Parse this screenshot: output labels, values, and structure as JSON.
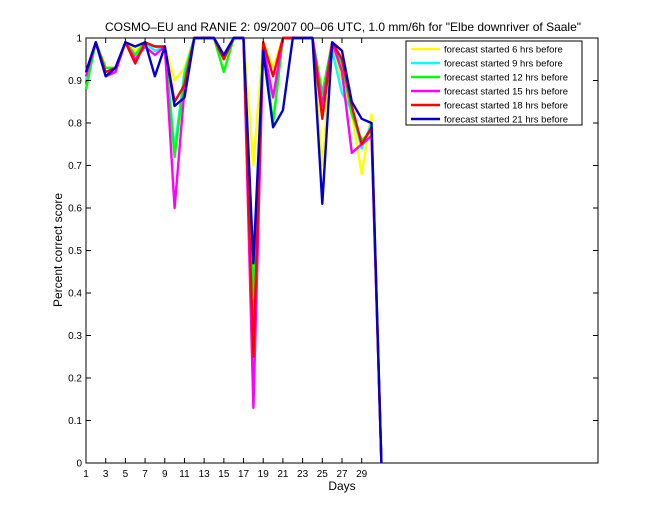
{
  "chart_data": {
    "type": "line",
    "title": "COSMO–EU and RANIE 2: 09/2007 00–06 UTC, 1.0 mm/6h for \"Elbe downriver of Saale\"",
    "xlabel": "Days",
    "ylabel": "Percent correct score",
    "xlim": [
      1,
      53
    ],
    "ylim": [
      0,
      1
    ],
    "xticks": [
      1,
      3,
      5,
      7,
      9,
      11,
      13,
      15,
      17,
      19,
      21,
      23,
      25,
      27,
      29
    ],
    "yticks": [
      0,
      0.1,
      0.2,
      0.3,
      0.4,
      0.5,
      0.6,
      0.7,
      0.8,
      0.9,
      1
    ],
    "ytick_labels": [
      "0",
      "0.1",
      "0.2",
      "0.3",
      "0.4",
      "0.5",
      "0.6",
      "0.7",
      "0.8",
      "0.9",
      "1"
    ],
    "legend_position": "top-right",
    "grid": false,
    "x": [
      1,
      2,
      3,
      4,
      5,
      6,
      7,
      8,
      9,
      10,
      11,
      12,
      13,
      14,
      15,
      16,
      17,
      18,
      19,
      20,
      21,
      22,
      23,
      24,
      25,
      26,
      27,
      28,
      29,
      30,
      31
    ],
    "series": [
      {
        "name": "forecast started 6 hrs before",
        "color": "#ffff00",
        "values": [
          0.92,
          0.99,
          0.92,
          0.93,
          0.99,
          0.97,
          0.99,
          0.97,
          0.98,
          0.9,
          0.93,
          1.0,
          1.0,
          1.0,
          0.95,
          1.0,
          1.0,
          0.7,
          0.99,
          0.93,
          1.0,
          1.0,
          1.0,
          1.0,
          0.7,
          0.99,
          0.9,
          0.82,
          0.68,
          0.82,
          0.0
        ]
      },
      {
        "name": "forecast started 9 hrs before",
        "color": "#00ffff",
        "values": [
          0.9,
          0.99,
          0.92,
          0.93,
          0.99,
          0.96,
          0.99,
          0.97,
          0.98,
          0.74,
          0.92,
          1.0,
          1.0,
          1.0,
          0.95,
          1.0,
          1.0,
          0.3,
          0.98,
          0.8,
          1.0,
          1.0,
          1.0,
          1.0,
          0.85,
          0.97,
          0.87,
          0.83,
          0.74,
          0.8,
          0.0
        ]
      },
      {
        "name": "forecast started 12 hrs before",
        "color": "#00ff00",
        "values": [
          0.88,
          0.99,
          0.93,
          0.93,
          0.99,
          0.96,
          0.99,
          0.98,
          0.98,
          0.72,
          0.91,
          1.0,
          1.0,
          1.0,
          0.92,
          1.0,
          1.0,
          0.38,
          0.99,
          0.8,
          1.0,
          1.0,
          1.0,
          1.0,
          0.87,
          0.99,
          0.94,
          0.82,
          0.76,
          0.78,
          0.0
        ]
      },
      {
        "name": "forecast started 15 hrs before",
        "color": "#ff00ff",
        "values": [
          0.91,
          0.99,
          0.91,
          0.92,
          0.99,
          0.95,
          0.98,
          0.96,
          0.98,
          0.6,
          0.88,
          1.0,
          1.0,
          1.0,
          0.95,
          1.0,
          1.0,
          0.13,
          0.98,
          0.86,
          1.0,
          1.0,
          1.0,
          1.0,
          0.84,
          0.99,
          0.92,
          0.73,
          0.75,
          0.77,
          0.0
        ]
      },
      {
        "name": "forecast started 18 hrs before",
        "color": "#ff0000",
        "values": [
          0.92,
          0.99,
          0.92,
          0.93,
          0.99,
          0.94,
          0.99,
          0.98,
          0.98,
          0.85,
          0.89,
          1.0,
          1.0,
          1.0,
          0.95,
          1.0,
          1.0,
          0.25,
          0.99,
          0.91,
          1.0,
          1.0,
          1.0,
          1.0,
          0.81,
          0.99,
          0.95,
          0.84,
          0.75,
          0.79,
          0.0
        ]
      },
      {
        "name": "forecast started 21 hrs before",
        "color": "#0000cc",
        "values": [
          0.92,
          0.99,
          0.91,
          0.93,
          0.99,
          0.98,
          0.99,
          0.91,
          0.98,
          0.84,
          0.86,
          1.0,
          1.0,
          1.0,
          0.96,
          1.0,
          1.0,
          0.47,
          0.97,
          0.79,
          0.83,
          1.0,
          1.0,
          1.0,
          0.61,
          0.99,
          0.97,
          0.85,
          0.81,
          0.8,
          0.0
        ]
      }
    ]
  }
}
